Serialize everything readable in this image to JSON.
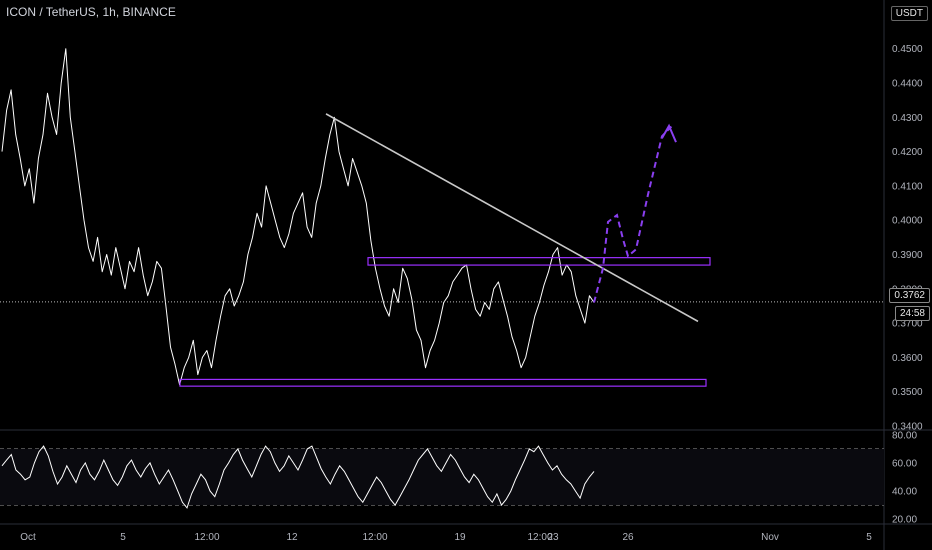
{
  "header": {
    "title": "ICON / TetherUS, 1h, BINANCE",
    "currency_button": "USDT"
  },
  "price_readouts": {
    "last_price": "0.3762",
    "countdown": "24:58"
  },
  "colors": {
    "background": "#000000",
    "price_line": "#ffffff",
    "zone": "#9b30ff",
    "forecast": "#8a3ff0",
    "trendline": "#c8c8c8",
    "rsi_line": "#ffffff"
  },
  "chart_data": [
    {
      "type": "line",
      "panel": "price",
      "title": "ICON / TetherUS, 1h, BINANCE",
      "y_tick_labels": [
        "0.3400",
        "0.3500",
        "0.3600",
        "0.3700",
        "0.3800",
        "0.3900",
        "0.4000",
        "0.4100",
        "0.4200",
        "0.4300",
        "0.4400",
        "0.4500"
      ],
      "ylim": [
        0.337,
        0.455
      ],
      "x_tick_labels": [
        "Oct",
        "5",
        "12:00",
        "12",
        "12:00",
        "19",
        "12:00",
        "23",
        "26",
        "Nov",
        "5"
      ],
      "grid": false,
      "series": [
        {
          "values": [
            0.42,
            0.432,
            0.438,
            0.425,
            0.418,
            0.41,
            0.415,
            0.405,
            0.418,
            0.425,
            0.437,
            0.43,
            0.425,
            0.44,
            0.45,
            0.43,
            0.42,
            0.41,
            0.4,
            0.392,
            0.388,
            0.395,
            0.385,
            0.39,
            0.384,
            0.392,
            0.386,
            0.38,
            0.388,
            0.385,
            0.392,
            0.384,
            0.378,
            0.382,
            0.388,
            0.386,
            0.375,
            0.363,
            0.358,
            0.352,
            0.357,
            0.36,
            0.365,
            0.355,
            0.36,
            0.362,
            0.357,
            0.365,
            0.372,
            0.378,
            0.38,
            0.375,
            0.378,
            0.382,
            0.39,
            0.395,
            0.402,
            0.398,
            0.41,
            0.405,
            0.4,
            0.395,
            0.392,
            0.396,
            0.402,
            0.405,
            0.408,
            0.398,
            0.395,
            0.405,
            0.41,
            0.418,
            0.425,
            0.43,
            0.42,
            0.415,
            0.41,
            0.418,
            0.414,
            0.41,
            0.405,
            0.394,
            0.386,
            0.38,
            0.375,
            0.372,
            0.38,
            0.376,
            0.386,
            0.383,
            0.377,
            0.368,
            0.365,
            0.357,
            0.362,
            0.365,
            0.37,
            0.376,
            0.378,
            0.382,
            0.384,
            0.386,
            0.387,
            0.38,
            0.374,
            0.372,
            0.376,
            0.374,
            0.38,
            0.382,
            0.377,
            0.372,
            0.366,
            0.362,
            0.357,
            0.36,
            0.366,
            0.372,
            0.376,
            0.381,
            0.385,
            0.39,
            0.392,
            0.384,
            0.387,
            0.385,
            0.378,
            0.374,
            0.37,
            0.378,
            0.376
          ],
          "x_start": "Oct 1",
          "x_end": "Oct 24"
        }
      ],
      "annotations": {
        "horizontal_zones": [
          {
            "y_low": 0.3875,
            "y_high": 0.3885,
            "from": "Oct 14",
            "to": "Oct 29"
          },
          {
            "y_low": 0.3522,
            "y_high": 0.353,
            "from": "Oct 8",
            "to": "Oct 29"
          }
        ],
        "trendline": {
          "from": {
            "x": "Oct 14",
            "y": 0.431
          },
          "to": {
            "x": "Oct 29",
            "y": 0.3705
          }
        },
        "forecast_path": [
          0.376,
          0.386,
          0.3995,
          0.4015,
          0.3945,
          0.3895,
          0.3915,
          0.4075,
          0.4245,
          0.4275
        ]
      }
    },
    {
      "type": "line",
      "panel": "rsi",
      "y_tick_labels": [
        "20.00",
        "40.00",
        "60.00",
        "80.00"
      ],
      "ylim": [
        18,
        82
      ],
      "reference_lines": [
        70,
        30
      ],
      "series": [
        {
          "values": [
            58,
            62,
            66,
            55,
            52,
            48,
            50,
            60,
            68,
            72,
            65,
            54,
            45,
            50,
            58,
            52,
            46,
            55,
            60,
            52,
            48,
            54,
            62,
            55,
            48,
            44,
            50,
            58,
            62,
            55,
            50,
            56,
            60,
            52,
            45,
            50,
            55,
            48,
            40,
            32,
            28,
            38,
            45,
            52,
            48,
            40,
            36,
            45,
            55,
            60,
            66,
            70,
            62,
            56,
            50,
            58,
            66,
            72,
            68,
            60,
            54,
            58,
            65,
            60,
            55,
            62,
            70,
            72,
            64,
            56,
            50,
            45,
            52,
            58,
            54,
            48,
            42,
            36,
            32,
            38,
            44,
            50,
            46,
            40,
            34,
            30,
            36,
            42,
            48,
            55,
            62,
            66,
            70,
            64,
            58,
            54,
            60,
            66,
            62,
            56,
            50,
            46,
            52,
            48,
            42,
            36,
            32,
            38,
            30,
            34,
            40,
            48,
            55,
            62,
            70,
            68,
            72,
            66,
            60,
            55,
            58,
            52,
            48,
            45,
            40,
            35,
            45,
            50,
            54
          ]
        }
      ]
    }
  ]
}
